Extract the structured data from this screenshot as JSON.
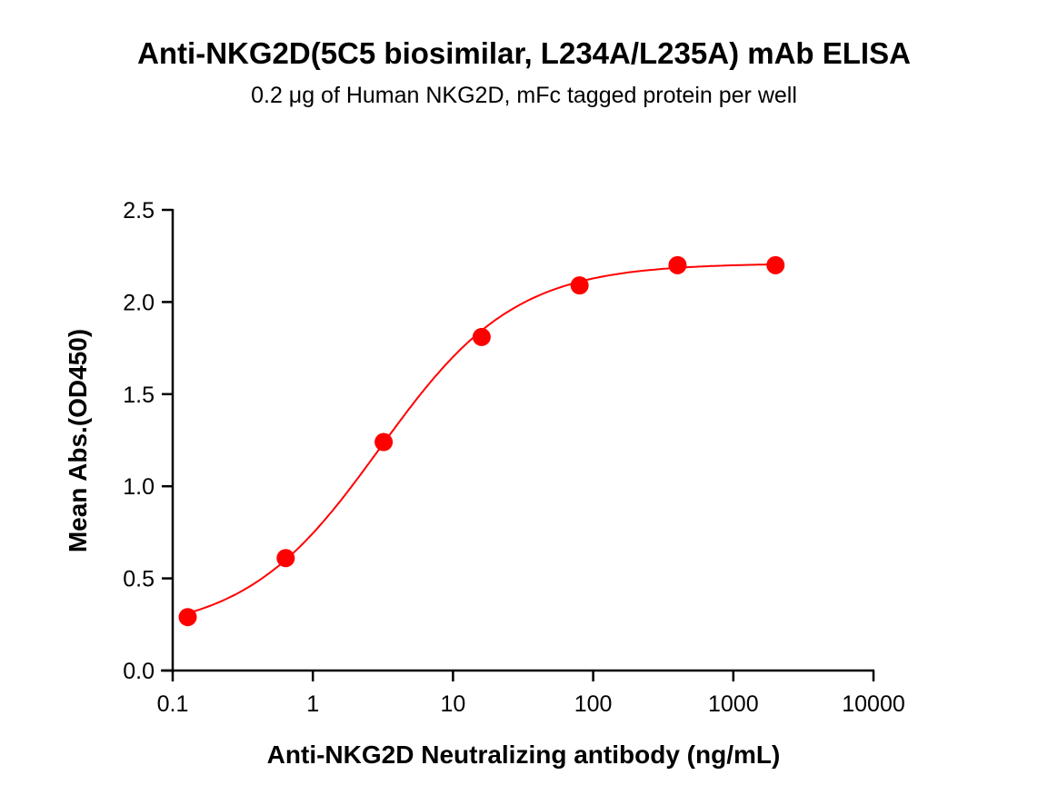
{
  "chart_data": {
    "type": "scatter",
    "title": "Anti-NKG2D(5C5 biosimilar, L234A/L235A) mAb ELISA",
    "subtitle": "0.2 μg of Human NKG2D, mFc tagged protein per well",
    "xlabel": "Anti-NKG2D Neutralizing antibody (ng/mL)",
    "ylabel": "Mean Abs.(OD450)",
    "xscale": "log",
    "xlim": [
      0.1,
      10000
    ],
    "ylim": [
      0,
      2.5
    ],
    "xticks": [
      "0.1",
      "1",
      "10",
      "100",
      "1000",
      "10000"
    ],
    "yticks": [
      "0.0",
      "0.5",
      "1.0",
      "1.5",
      "2.0",
      "2.5"
    ],
    "grid": false,
    "legend": "none",
    "fit": "4-parameter logistic curve",
    "series": [
      {
        "color": "#ff0000",
        "x": [
          0.128,
          0.64,
          3.2,
          16,
          80,
          400,
          2000
        ],
        "y": [
          0.29,
          0.61,
          1.24,
          1.81,
          2.09,
          2.2,
          2.2
        ]
      }
    ]
  }
}
